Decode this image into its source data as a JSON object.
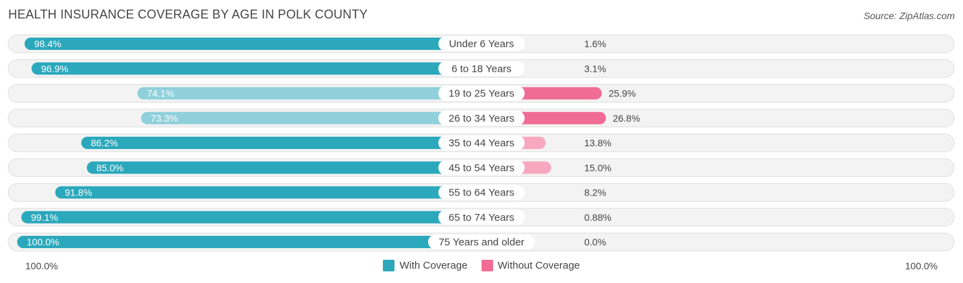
{
  "title": "HEALTH INSURANCE COVERAGE BY AGE IN POLK COUNTY",
  "source": "Source: ZipAtlas.com",
  "axis": {
    "left_label": "100.0%",
    "right_label": "100.0%"
  },
  "legend": [
    {
      "label": "With Coverage",
      "color": "#2ba8bc"
    },
    {
      "label": "Without Coverage",
      "color": "#f06b96"
    }
  ],
  "chart_data": {
    "type": "bar",
    "orientation": "horizontal-diverging",
    "title": "HEALTH INSURANCE COVERAGE BY AGE IN POLK COUNTY",
    "categories": [
      "Under 6 Years",
      "6 to 18 Years",
      "19 to 25 Years",
      "26 to 34 Years",
      "35 to 44 Years",
      "45 to 54 Years",
      "55 to 64 Years",
      "65 to 74 Years",
      "75 Years and older"
    ],
    "series": [
      {
        "name": "With Coverage",
        "values": [
          98.4,
          96.9,
          74.1,
          73.3,
          86.2,
          85.0,
          91.8,
          99.1,
          100.0
        ],
        "labels": [
          "98.4%",
          "96.9%",
          "74.1%",
          "73.3%",
          "86.2%",
          "85.0%",
          "91.8%",
          "99.1%",
          "100.0%"
        ]
      },
      {
        "name": "Without Coverage",
        "values": [
          1.6,
          3.1,
          25.9,
          26.8,
          13.8,
          15.0,
          8.2,
          0.88,
          0.0
        ],
        "labels": [
          "1.6%",
          "3.1%",
          "25.9%",
          "26.8%",
          "13.8%",
          "15.0%",
          "8.2%",
          "0.88%",
          "0.0%"
        ]
      }
    ],
    "xlim": [
      0,
      100
    ],
    "colors": {
      "with_dark": "#2ba8bc",
      "with_light": "#8fd0db",
      "without_dark": "#f06b96",
      "without_light": "#f7a7c0"
    }
  }
}
